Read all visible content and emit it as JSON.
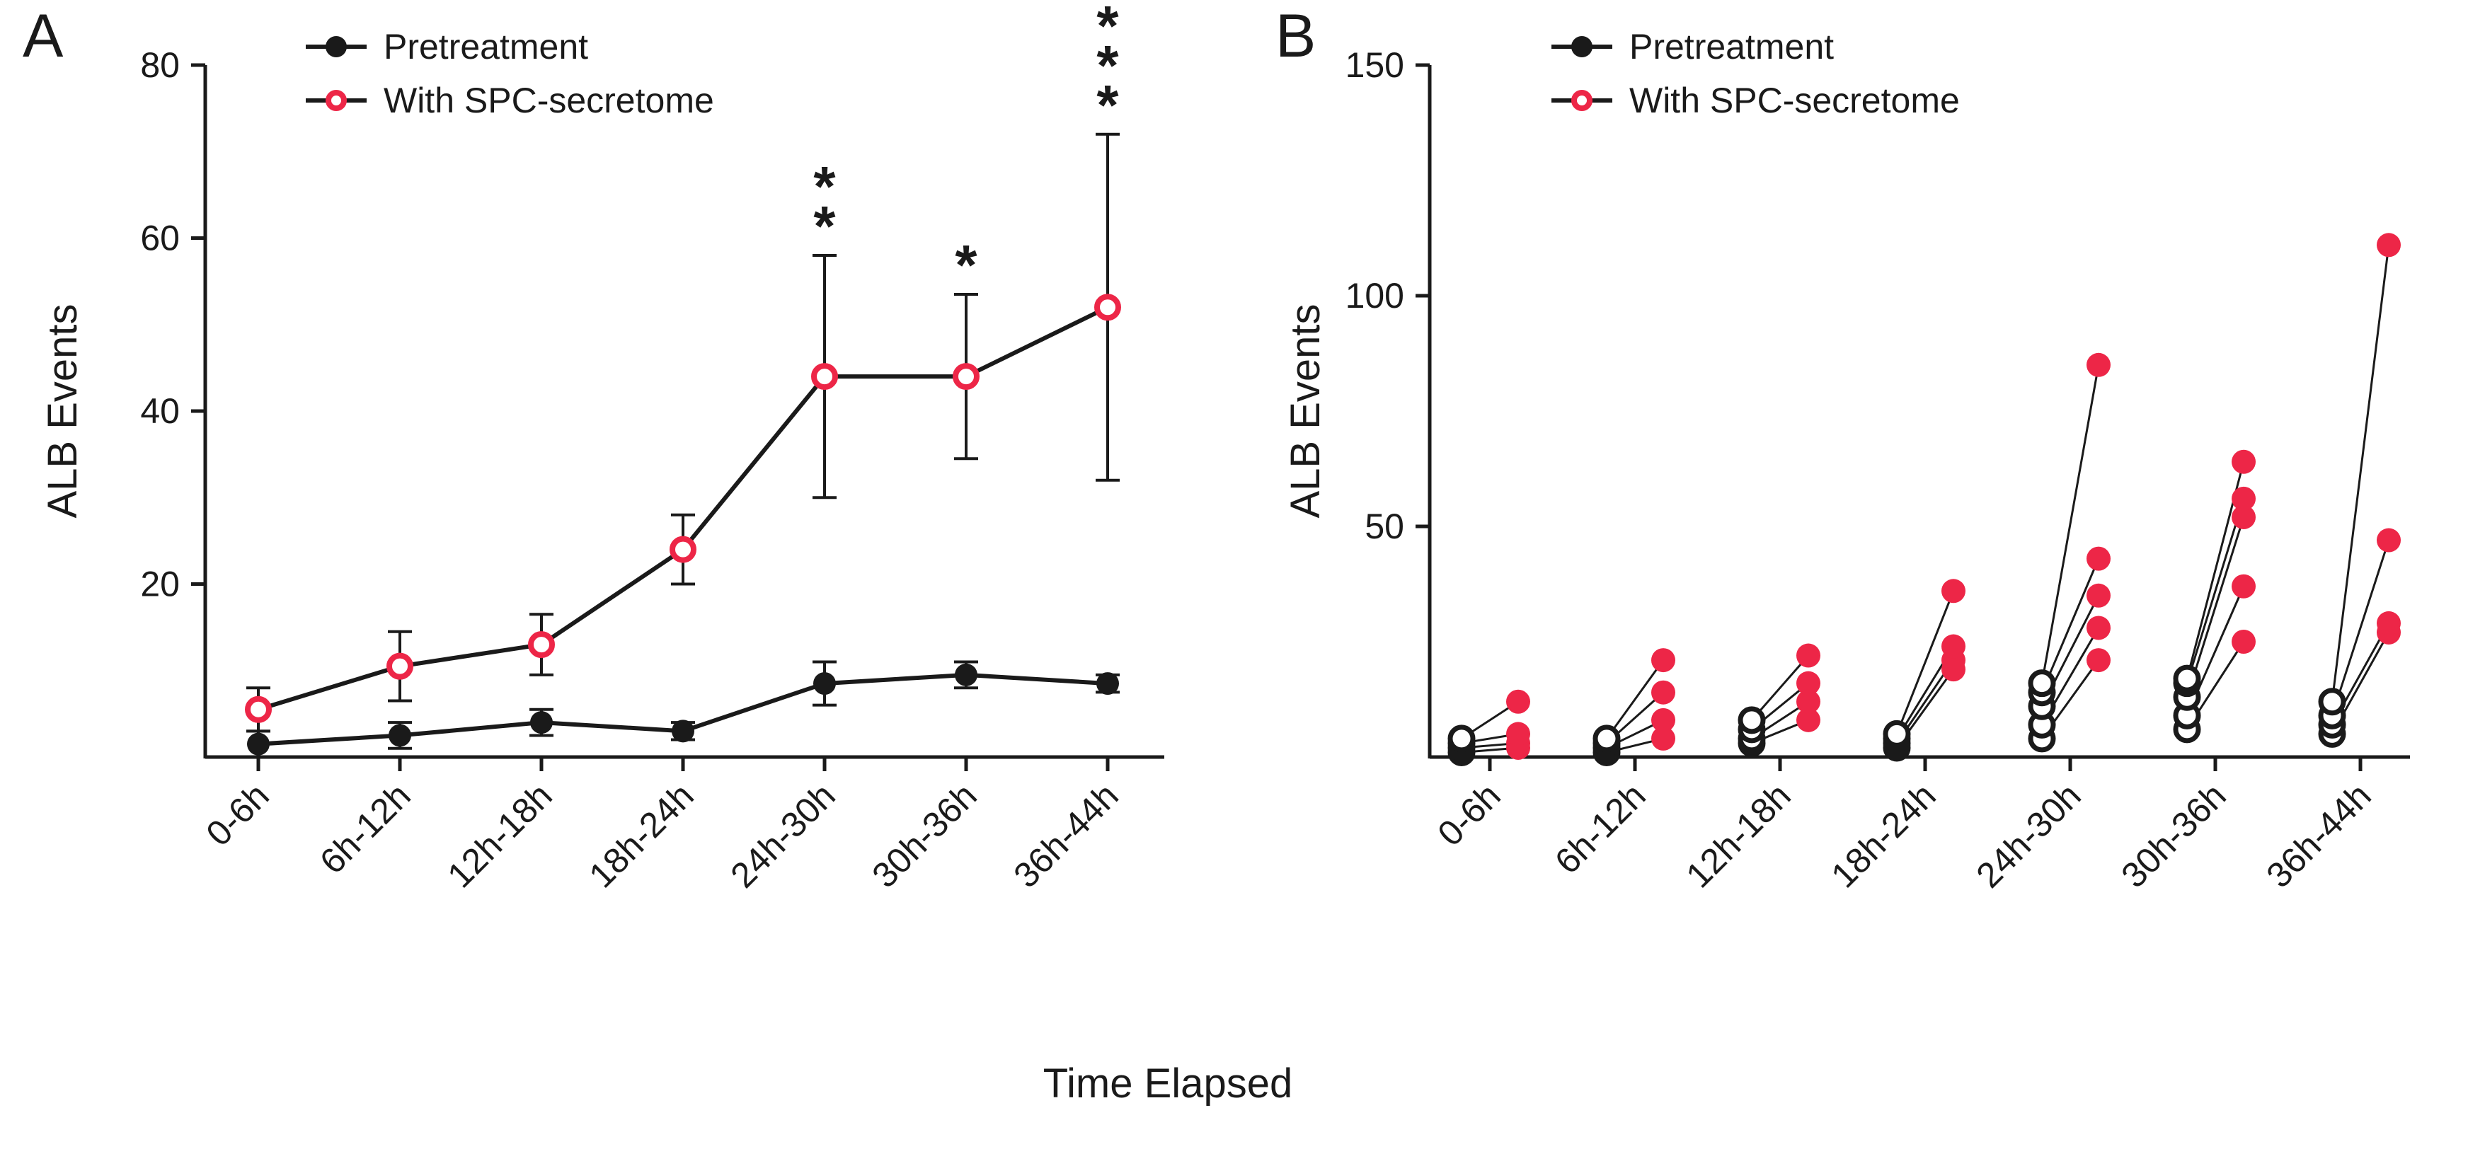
{
  "figure": {
    "panel_a_label": "A",
    "panel_b_label": "B",
    "x_axis_label": "Time Elapsed",
    "y_axis_label": "ALB Events",
    "legend": {
      "pretreatment": "Pretreatment",
      "secretome": "With SPC-secretome"
    },
    "colors": {
      "black": "#1a1a1a",
      "red": "#ED2647"
    }
  },
  "chart_data": [
    {
      "panel": "A",
      "type": "line",
      "title": "",
      "xlabel": "Time Elapsed",
      "ylabel": "ALB Events",
      "ylim": [
        0,
        80
      ],
      "yticks": [
        20,
        40,
        60,
        80
      ],
      "grid": false,
      "legend_position": "top-left",
      "categories": [
        "0-6h",
        "6h-12h",
        "12h-18h",
        "18h-24h",
        "24h-30h",
        "30h-36h",
        "36h-44h"
      ],
      "series": [
        {
          "name": "Pretreatment",
          "marker": "filled-circle",
          "color": "#1a1a1a",
          "line_color": "#1a1a1a",
          "values": [
            1.5,
            2.5,
            4,
            3,
            8.5,
            9.5,
            8.5
          ],
          "errors": [
            1.5,
            1.5,
            1.5,
            1,
            2.5,
            1.5,
            1
          ]
        },
        {
          "name": "With SPC-secretome",
          "marker": "open-circle",
          "color": "#ED2647",
          "line_color": "#1a1a1a",
          "values": [
            5.5,
            10.5,
            13,
            24,
            44,
            44,
            52
          ],
          "errors": [
            2.5,
            4,
            3.5,
            4,
            14,
            9.5,
            20
          ]
        }
      ],
      "significance": [
        {
          "category": "24h-30h",
          "label": "**"
        },
        {
          "category": "30h-36h",
          "label": "*"
        },
        {
          "category": "36h-44h",
          "label": "***"
        }
      ]
    },
    {
      "panel": "B",
      "type": "scatter",
      "title": "",
      "xlabel": "Time Elapsed",
      "ylabel": "ALB Events",
      "ylim": [
        0,
        150
      ],
      "yticks": [
        50,
        100,
        150
      ],
      "grid": false,
      "legend_position": "top-left",
      "categories": [
        "0-6h",
        "6h-12h",
        "12h-18h",
        "18h-24h",
        "24h-30h",
        "30h-36h",
        "36h-44h"
      ],
      "series_names": [
        "Pretreatment",
        "With SPC-secretome"
      ],
      "pairs": [
        {
          "category": "0-6h",
          "pretreatment": [
            1,
            2,
            3,
            4
          ],
          "with_spc_secretome": [
            2,
            3,
            5,
            12
          ]
        },
        {
          "category": "6h-12h",
          "pretreatment": [
            1,
            2,
            3,
            4
          ],
          "with_spc_secretome": [
            4,
            8,
            14,
            21
          ]
        },
        {
          "category": "12h-18h",
          "pretreatment": [
            3,
            4,
            6,
            8
          ],
          "with_spc_secretome": [
            8,
            12,
            16,
            22
          ]
        },
        {
          "category": "18h-24h",
          "pretreatment": [
            2,
            3,
            4,
            5
          ],
          "with_spc_secretome": [
            19,
            21,
            24,
            36
          ]
        },
        {
          "category": "24h-30h",
          "pretreatment": [
            4,
            7,
            11,
            14,
            16
          ],
          "with_spc_secretome": [
            21,
            28,
            35,
            43,
            85
          ]
        },
        {
          "category": "30h-36h",
          "pretreatment": [
            6,
            9,
            13,
            16,
            17
          ],
          "with_spc_secretome": [
            25,
            37,
            52,
            56,
            64
          ]
        },
        {
          "category": "36h-44h",
          "pretreatment": [
            5,
            7,
            9,
            12
          ],
          "with_spc_secretome": [
            27,
            29,
            47,
            111
          ]
        }
      ]
    }
  ]
}
